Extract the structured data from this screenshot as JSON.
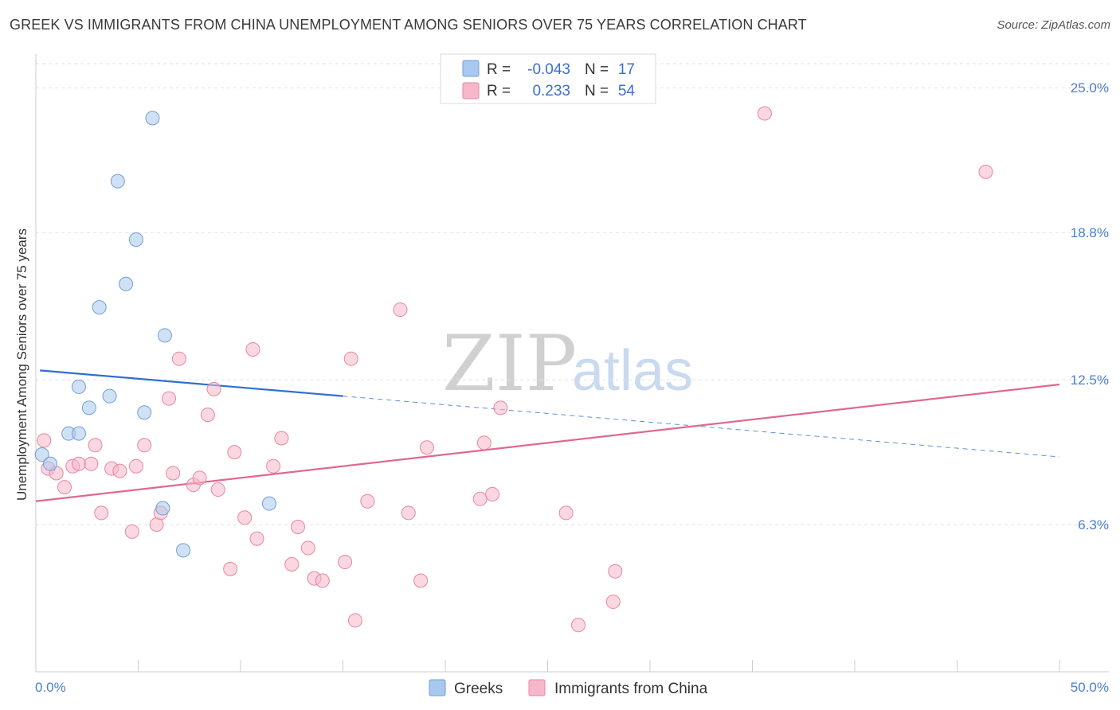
{
  "header": {
    "title": "GREEK VS IMMIGRANTS FROM CHINA UNEMPLOYMENT AMONG SENIORS OVER 75 YEARS CORRELATION CHART",
    "source": "Source: ZipAtlas.com"
  },
  "watermark": {
    "zip": "ZIP",
    "atlas": "atlas"
  },
  "legend": {
    "rows": [
      {
        "r_label": "R =",
        "r_value": "-0.043",
        "n_label": "N =",
        "n_value": "17",
        "color": "#a9c8ef"
      },
      {
        "r_label": "R =",
        "r_value": "0.233",
        "n_label": "N =",
        "n_value": "54",
        "color": "#f7b7cb"
      }
    ]
  },
  "bottom_legend": {
    "greeks": "Greeks",
    "china": "Immigrants from China"
  },
  "chart_data": {
    "type": "scatter",
    "title": "GREEK VS IMMIGRANTS FROM CHINA UNEMPLOYMENT AMONG SENIORS OVER 75 YEARS CORRELATION CHART",
    "xlabel": "",
    "ylabel": "Unemployment Among Seniors over 75 years",
    "xlim": [
      0,
      50
    ],
    "ylim": [
      0,
      26.2
    ],
    "x_tick_labels": [
      "0.0%",
      "50.0%"
    ],
    "y_ticks": [
      6.3,
      12.5,
      18.8,
      25.0
    ],
    "y_tick_labels": [
      "6.3%",
      "12.5%",
      "18.8%",
      "25.0%"
    ],
    "grid": true,
    "legend_position": "top-center",
    "series": [
      {
        "name": "Greeks",
        "color": "#a9c8ef",
        "stroke": "#6f9fd8",
        "points": [
          [
            0.3,
            9.3
          ],
          [
            0.7,
            8.9
          ],
          [
            1.6,
            10.2
          ],
          [
            2.1,
            10.2
          ],
          [
            2.1,
            12.2
          ],
          [
            2.6,
            11.3
          ],
          [
            3.1,
            15.6
          ],
          [
            3.6,
            11.8
          ],
          [
            4.0,
            21.0
          ],
          [
            4.4,
            16.6
          ],
          [
            4.9,
            18.5
          ],
          [
            5.3,
            11.1
          ],
          [
            5.7,
            23.7
          ],
          [
            6.3,
            14.4
          ],
          [
            6.2,
            7.0
          ],
          [
            7.2,
            5.2
          ],
          [
            11.4,
            7.2
          ]
        ],
        "trend": {
          "x0": 0.2,
          "y0": 12.9,
          "x1": 15.0,
          "y1": 11.8,
          "x_dash_end": 50.0,
          "y_dash_end": 9.2
        }
      },
      {
        "name": "Immigrants from China",
        "color": "#f7b7cb",
        "stroke": "#e8869f",
        "points": [
          [
            0.4,
            9.9
          ],
          [
            0.6,
            8.7
          ],
          [
            1.0,
            8.5
          ],
          [
            1.4,
            7.9
          ],
          [
            1.8,
            8.8
          ],
          [
            2.1,
            8.9
          ],
          [
            2.7,
            8.9
          ],
          [
            2.9,
            9.7
          ],
          [
            3.2,
            6.8
          ],
          [
            3.7,
            8.7
          ],
          [
            4.1,
            8.6
          ],
          [
            4.7,
            6.0
          ],
          [
            4.9,
            8.8
          ],
          [
            5.3,
            9.7
          ],
          [
            5.9,
            6.3
          ],
          [
            6.1,
            6.8
          ],
          [
            6.5,
            11.7
          ],
          [
            6.7,
            8.5
          ],
          [
            7.0,
            13.4
          ],
          [
            7.7,
            8.0
          ],
          [
            8.0,
            8.3
          ],
          [
            8.4,
            11.0
          ],
          [
            8.7,
            12.1
          ],
          [
            8.9,
            7.8
          ],
          [
            9.5,
            4.4
          ],
          [
            9.7,
            9.4
          ],
          [
            10.2,
            6.6
          ],
          [
            10.6,
            13.8
          ],
          [
            10.8,
            5.7
          ],
          [
            11.6,
            8.8
          ],
          [
            12.0,
            10.0
          ],
          [
            12.8,
            6.2
          ],
          [
            12.5,
            4.6
          ],
          [
            13.3,
            5.3
          ],
          [
            13.6,
            4.0
          ],
          [
            14.0,
            3.9
          ],
          [
            15.1,
            4.7
          ],
          [
            15.4,
            13.4
          ],
          [
            15.6,
            2.2
          ],
          [
            16.2,
            7.3
          ],
          [
            17.8,
            15.5
          ],
          [
            18.2,
            6.8
          ],
          [
            18.8,
            3.9
          ],
          [
            19.1,
            9.6
          ],
          [
            21.7,
            7.4
          ],
          [
            21.9,
            9.8
          ],
          [
            22.3,
            7.6
          ],
          [
            22.7,
            11.3
          ],
          [
            25.9,
            6.8
          ],
          [
            26.5,
            2.0
          ],
          [
            28.2,
            3.0
          ],
          [
            28.3,
            4.3
          ],
          [
            35.6,
            23.9
          ],
          [
            46.4,
            21.4
          ]
        ],
        "trend": {
          "x0": 0.0,
          "y0": 7.3,
          "x1": 50.0,
          "y1": 12.3
        }
      }
    ]
  }
}
